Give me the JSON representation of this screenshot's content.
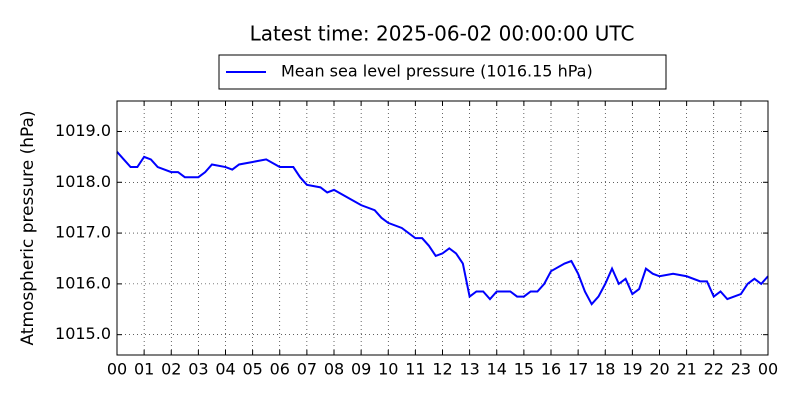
{
  "chart_data": {
    "type": "line",
    "title": "Latest time: 2025-06-02 00:00:00 UTC",
    "y_label": "Atmospheric pressure (hPa)",
    "x": [
      0,
      0.25,
      0.5,
      0.75,
      1,
      1.25,
      1.5,
      2,
      2.25,
      2.5,
      3,
      3.25,
      3.5,
      4,
      4.25,
      4.5,
      5,
      5.5,
      6,
      6.5,
      6.75,
      7,
      7.5,
      7.75,
      8,
      8.5,
      9,
      9.5,
      9.75,
      10,
      10.5,
      11,
      11.25,
      11.5,
      11.75,
      12,
      12.25,
      12.5,
      12.75,
      13,
      13.25,
      13.5,
      13.75,
      14,
      14.5,
      14.75,
      15,
      15.25,
      15.5,
      15.75,
      16,
      16.5,
      16.75,
      17,
      17.25,
      17.5,
      17.75,
      18,
      18.25,
      18.5,
      18.75,
      19,
      19.25,
      19.5,
      19.75,
      20,
      20.5,
      21,
      21.5,
      21.75,
      22,
      22.25,
      22.5,
      22.75,
      23,
      23.25,
      23.5,
      23.75,
      24
    ],
    "series": [
      {
        "name": "Mean sea level pressure (1016.15 hPa)",
        "color": "#0000ff",
        "values": [
          1018.6,
          1018.45,
          1018.3,
          1018.3,
          1018.5,
          1018.45,
          1018.3,
          1018.2,
          1018.2,
          1018.1,
          1018.1,
          1018.2,
          1018.35,
          1018.3,
          1018.25,
          1018.35,
          1018.4,
          1018.45,
          1018.3,
          1018.3,
          1018.1,
          1017.95,
          1017.9,
          1017.8,
          1017.85,
          1017.7,
          1017.55,
          1017.45,
          1017.3,
          1017.2,
          1017.1,
          1016.9,
          1016.9,
          1016.75,
          1016.55,
          1016.6,
          1016.7,
          1016.6,
          1016.4,
          1015.75,
          1015.85,
          1015.85,
          1015.7,
          1015.85,
          1015.85,
          1015.75,
          1015.75,
          1015.85,
          1015.85,
          1016.0,
          1016.25,
          1016.4,
          1016.45,
          1016.2,
          1015.85,
          1015.6,
          1015.75,
          1016.0,
          1016.3,
          1016.0,
          1016.1,
          1015.8,
          1015.9,
          1016.3,
          1016.2,
          1016.15,
          1016.2,
          1016.15,
          1016.05,
          1016.05,
          1015.75,
          1015.85,
          1015.7,
          1015.75,
          1015.8,
          1016.0,
          1016.1,
          1016.0,
          1016.15
        ]
      }
    ],
    "xlim": [
      0,
      24
    ],
    "xticks": [
      {
        "value": 0,
        "label": "00"
      },
      {
        "value": 1,
        "label": "01"
      },
      {
        "value": 2,
        "label": "02"
      },
      {
        "value": 3,
        "label": "03"
      },
      {
        "value": 4,
        "label": "04"
      },
      {
        "value": 5,
        "label": "05"
      },
      {
        "value": 6,
        "label": "06"
      },
      {
        "value": 7,
        "label": "07"
      },
      {
        "value": 8,
        "label": "08"
      },
      {
        "value": 9,
        "label": "09"
      },
      {
        "value": 10,
        "label": "10"
      },
      {
        "value": 11,
        "label": "11"
      },
      {
        "value": 12,
        "label": "12"
      },
      {
        "value": 13,
        "label": "13"
      },
      {
        "value": 14,
        "label": "14"
      },
      {
        "value": 15,
        "label": "15"
      },
      {
        "value": 16,
        "label": "16"
      },
      {
        "value": 17,
        "label": "17"
      },
      {
        "value": 18,
        "label": "18"
      },
      {
        "value": 19,
        "label": "19"
      },
      {
        "value": 20,
        "label": "20"
      },
      {
        "value": 21,
        "label": "21"
      },
      {
        "value": 22,
        "label": "22"
      },
      {
        "value": 23,
        "label": "23"
      },
      {
        "value": 24,
        "label": "00"
      }
    ],
    "ylim": [
      1014.6,
      1019.6
    ],
    "yticks": [
      {
        "value": 1015,
        "label": "1015.0"
      },
      {
        "value": 1016,
        "label": "1016.0"
      },
      {
        "value": 1017,
        "label": "1017.0"
      },
      {
        "value": 1018,
        "label": "1018.0"
      },
      {
        "value": 1019,
        "label": "1019.0"
      }
    ],
    "grid": true
  }
}
